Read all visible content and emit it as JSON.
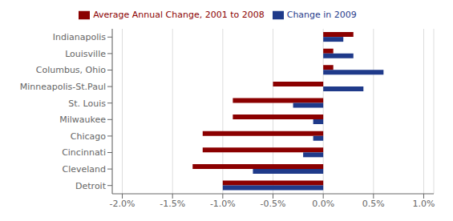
{
  "chart_data": {
    "type": "bar",
    "orientation": "horizontal",
    "categories": [
      "Detroit",
      "Cleveland",
      "Cincinnati",
      "Chicago",
      "Milwaukee",
      "St. Louis",
      "Minneapolis-St.Paul",
      "Columbus, Ohio",
      "Louisville",
      "Indianapolis"
    ],
    "series": [
      {
        "name": "Average Annual Change, 2001 to 2008",
        "color": "#8B0000",
        "values": [
          -0.01,
          -0.013,
          -0.012,
          -0.012,
          -0.009,
          -0.009,
          -0.005,
          0.001,
          0.001,
          0.003
        ]
      },
      {
        "name": "Change in 2009",
        "color": "#1F3A8A",
        "values": [
          -0.01,
          -0.007,
          -0.002,
          -0.001,
          -0.001,
          -0.003,
          0.004,
          0.006,
          0.003,
          0.002
        ]
      }
    ],
    "xlim": [
      -0.021,
      0.011
    ],
    "xticks": [
      {
        "value": -0.02,
        "label": "-2.0%"
      },
      {
        "value": -0.015,
        "label": "-1.5%"
      },
      {
        "value": -0.01,
        "label": "-1.0%"
      },
      {
        "value": -0.005,
        "label": "-0.5%"
      },
      {
        "value": 0.0,
        "label": "0.0%"
      },
      {
        "value": 0.005,
        "label": "0.5%"
      },
      {
        "value": 0.01,
        "label": "1.0%"
      }
    ],
    "grid": true,
    "legend": "top"
  }
}
